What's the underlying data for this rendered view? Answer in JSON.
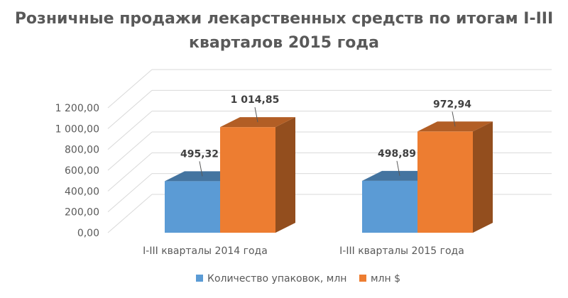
{
  "chart_data": {
    "type": "bar",
    "title_lines": [
      "Розничные продажи лекарственных средств по итогам I-III",
      "кварталов 2015 года"
    ],
    "categories": [
      "I-III кварталы 2014 года",
      "I-III кварталы 2015 года"
    ],
    "series": [
      {
        "name": "Количество упаковок, млн",
        "values": [
          495.32,
          498.89
        ],
        "value_labels": [
          "495,32",
          "498,89"
        ],
        "color": "#5B9BD5"
      },
      {
        "name": "млн $",
        "values": [
          1014.85,
          972.94
        ],
        "value_labels": [
          "1 014,85",
          "972,94"
        ],
        "color": "#ED7D31"
      }
    ],
    "ylim": [
      0,
      1200
    ],
    "yticks": [
      0,
      200,
      400,
      600,
      800,
      1000,
      1200
    ],
    "ytick_labels": [
      "0,00",
      "200,00",
      "400,00",
      "600,00",
      "800,00",
      "1 000,00",
      "1 200,00"
    ],
    "grid": true,
    "legend_position": "bottom",
    "style": "3d-clustered-column"
  }
}
